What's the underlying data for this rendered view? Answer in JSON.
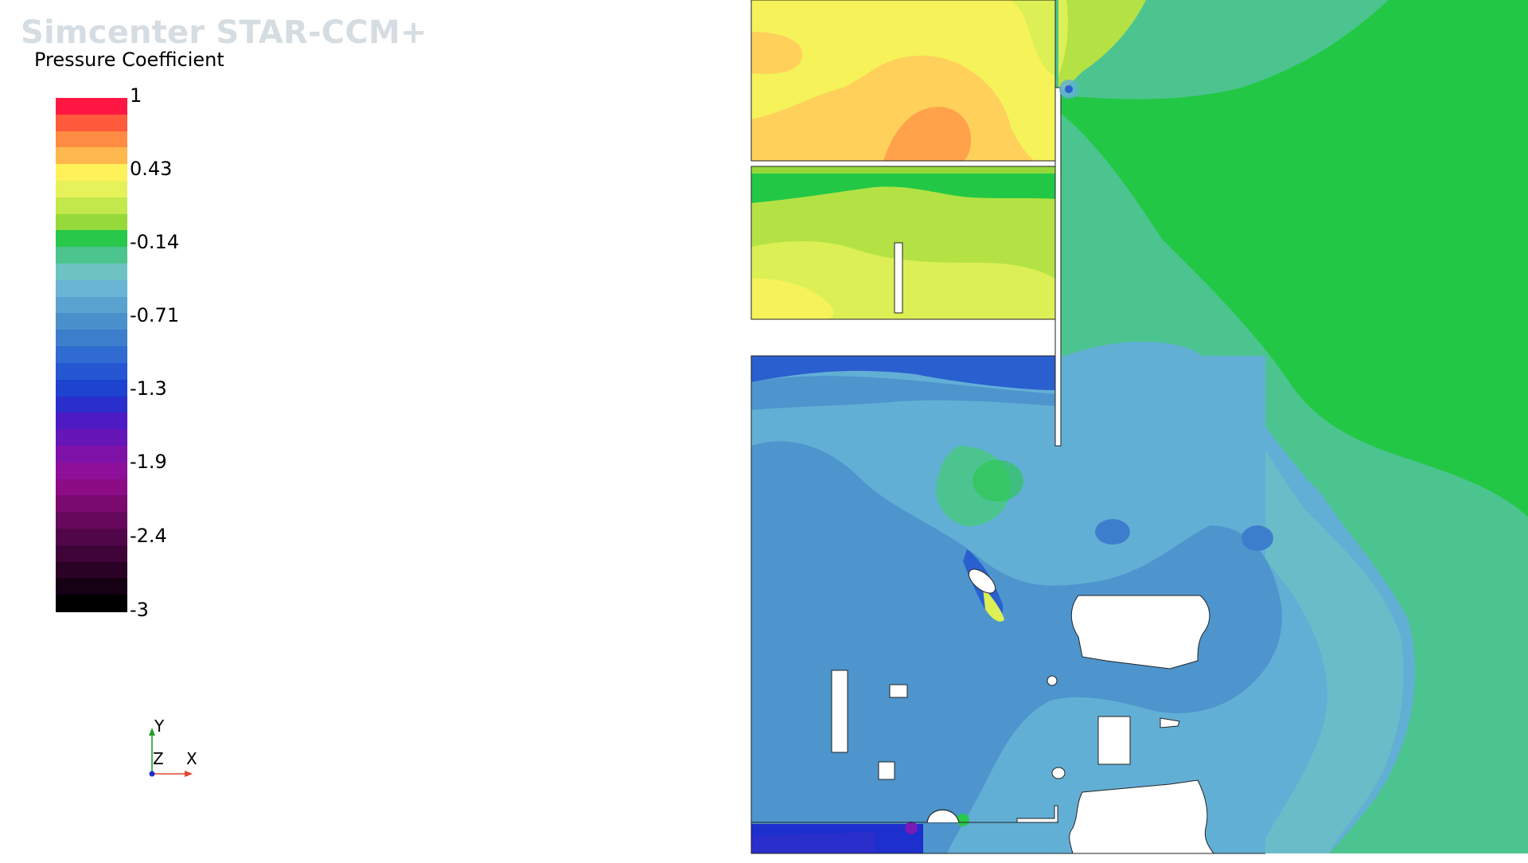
{
  "app": {
    "brand": "Simcenter STAR-CCM+"
  },
  "legend": {
    "title": "Pressure Coefficient",
    "min": -3,
    "max": 1,
    "tick_labels": [
      "1",
      "0.43",
      "-0.14",
      "-0.71",
      "-1.3",
      "-1.9",
      "-2.4",
      "-3"
    ],
    "bands": [
      "#ff1744",
      "#ff5a3c",
      "#ff8c42",
      "#ffb84e",
      "#fff15a",
      "#e6f25a",
      "#c2e84c",
      "#96d93a",
      "#28c84a",
      "#4cc48e",
      "#6ec3c2",
      "#6ab4d6",
      "#5aa3d0",
      "#4a90cc",
      "#3d7ecc",
      "#2f6bd0",
      "#2557d2",
      "#1d43cf",
      "#2a2fcc",
      "#4d1ac4",
      "#6616b6",
      "#7e12a8",
      "#8e109a",
      "#8c0c86",
      "#7a0a70",
      "#66085c",
      "#52064a",
      "#3e0438",
      "#2a0226",
      "#160014",
      "#000000"
    ]
  },
  "axes_triad": {
    "y_label": "Y",
    "z_label": "Z",
    "x_label": "X",
    "colors": {
      "y": "#1f9e2c",
      "x": "#e0452b",
      "z": "#1f2fc9"
    }
  },
  "scene": {
    "colors": {
      "yellow": "#f5f25a",
      "light_orange": "#ffd05a",
      "orange": "#ffa24a",
      "yellow_green": "#dcef55",
      "light_green": "#b4e245",
      "green": "#22c845",
      "teal": "#4cc490",
      "light_blue": "#62afd6",
      "mid_blue": "#4d95cc",
      "deep_blue": "#2a5fd0",
      "royal_blue": "#1d2fcc",
      "violet": "#7a1ab8"
    }
  }
}
